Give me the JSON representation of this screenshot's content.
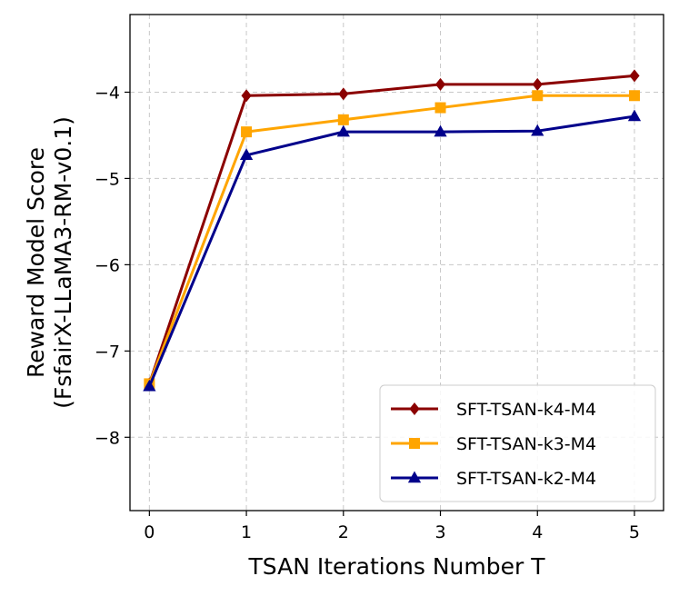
{
  "chart_data": {
    "type": "line",
    "title": "",
    "xlabel": "TSAN Iterations Number T",
    "ylabel_line1": "Reward Model Score",
    "ylabel_line2": "(FsfairX-LLaMA3-RM-v0.1)",
    "x": [
      0,
      1,
      2,
      3,
      4,
      5
    ],
    "xlim": [
      -0.2,
      5.3
    ],
    "ylim": [
      -8.85,
      -3.1
    ],
    "xticks": [
      0,
      1,
      2,
      3,
      4,
      5
    ],
    "yticks": [
      -8,
      -7,
      -6,
      -5,
      -4
    ],
    "grid": true,
    "legend_position": "lower-right",
    "series": [
      {
        "name": "SFT-TSAN-k4-M4",
        "color": "#8b0000",
        "marker": "diamond",
        "values": [
          -7.38,
          -4.04,
          -4.02,
          -3.91,
          -3.91,
          -3.81
        ]
      },
      {
        "name": "SFT-TSAN-k3-M4",
        "color": "#ffa500",
        "marker": "square",
        "values": [
          -7.38,
          -4.46,
          -4.32,
          -4.18,
          -4.04,
          -4.04
        ]
      },
      {
        "name": "SFT-TSAN-k2-M4",
        "color": "#00008b",
        "marker": "triangle",
        "values": [
          -7.41,
          -4.73,
          -4.46,
          -4.46,
          -4.45,
          -4.28
        ]
      }
    ]
  }
}
